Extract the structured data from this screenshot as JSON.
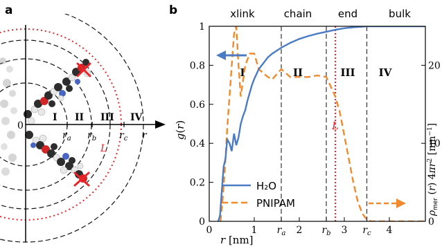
{
  "panel_a": {
    "letter": "a",
    "origin_label": "0",
    "regions": [
      "I",
      "II",
      "III",
      "IV"
    ],
    "radii": [
      "r_a",
      "r_b",
      "r_c",
      "r"
    ],
    "L_label": "L"
  },
  "panel_b": {
    "letter": "b",
    "region_headers": [
      "xlink",
      "chain",
      "end",
      "bulk"
    ],
    "region_numerals": [
      "I",
      "II",
      "III",
      "IV"
    ],
    "L_label": "L"
  },
  "chart_data": {
    "type": "line",
    "xlabel": "r [nm]",
    "ylabel_left": "g(r)",
    "ylabel_right": "ρmer(r)4πr² [nm⁻¹]",
    "xlim": [
      0,
      4.8
    ],
    "ylim_left": [
      0,
      1
    ],
    "ylim_right": [
      0,
      25
    ],
    "x_ticks": [
      {
        "value": 0,
        "label": "0"
      },
      {
        "value": 1,
        "label": "1"
      },
      {
        "value": 1.6,
        "label": "ra"
      },
      {
        "value": 2,
        "label": "2"
      },
      {
        "value": 2.6,
        "label": "rb"
      },
      {
        "value": 3,
        "label": "3"
      },
      {
        "value": 3.5,
        "label": "rc"
      },
      {
        "value": 4,
        "label": "4"
      }
    ],
    "y_ticks_left": [
      "0",
      "0.2",
      "0.4",
      "0.6",
      "0.8",
      "1"
    ],
    "y_ticks_right": [
      "0",
      "10",
      "20"
    ],
    "region_boundaries": [
      1.6,
      2.6,
      3.5
    ],
    "L_position": 2.8,
    "grid": false,
    "legend_position": "lower-left",
    "colors": {
      "h2o": "#4a7bc4",
      "pnipam": "#f08a2e",
      "L": "#e8252a",
      "boundary": "#333333"
    },
    "series": [
      {
        "name": "H₂O",
        "axis": "left",
        "style": "solid",
        "x": [
          0.2,
          0.24,
          0.28,
          0.32,
          0.36,
          0.4,
          0.45,
          0.5,
          0.55,
          0.6,
          0.65,
          0.7,
          0.75,
          0.8,
          0.85,
          0.9,
          0.95,
          1.0,
          1.1,
          1.2,
          1.3,
          1.4,
          1.5,
          1.6,
          1.8,
          2.0,
          2.2,
          2.4,
          2.6,
          2.8,
          3.0,
          3.2,
          3.4,
          3.5,
          3.7,
          4.0,
          4.4,
          4.8
        ],
        "values": [
          0.0,
          0.03,
          0.16,
          0.28,
          0.32,
          0.42,
          0.4,
          0.36,
          0.45,
          0.39,
          0.43,
          0.5,
          0.54,
          0.57,
          0.62,
          0.66,
          0.7,
          0.73,
          0.78,
          0.81,
          0.84,
          0.86,
          0.875,
          0.89,
          0.915,
          0.935,
          0.95,
          0.962,
          0.972,
          0.982,
          0.99,
          0.995,
          0.998,
          1.0,
          1.0,
          1.0,
          1.0,
          1.0
        ]
      },
      {
        "name": "PNIPAM",
        "axis": "right",
        "style": "dashed",
        "x": [
          0.25,
          0.3,
          0.35,
          0.4,
          0.45,
          0.5,
          0.55,
          0.6,
          0.65,
          0.7,
          0.8,
          0.9,
          1.0,
          1.1,
          1.2,
          1.3,
          1.4,
          1.6,
          1.8,
          2.0,
          2.2,
          2.4,
          2.6,
          2.8,
          2.9,
          3.0,
          3.1,
          3.2,
          3.3,
          3.4,
          3.5,
          3.6,
          4.0,
          4.8
        ],
        "values": [
          0,
          3,
          7,
          12,
          16,
          20,
          24,
          25,
          20,
          16,
          20,
          21.5,
          21.5,
          19.5,
          19,
          18.5,
          18.2,
          19.5,
          18.5,
          18.5,
          18.5,
          18.7,
          18.5,
          16,
          14,
          11,
          8,
          5,
          2.5,
          1,
          0.2,
          0,
          0,
          0
        ]
      }
    ]
  }
}
